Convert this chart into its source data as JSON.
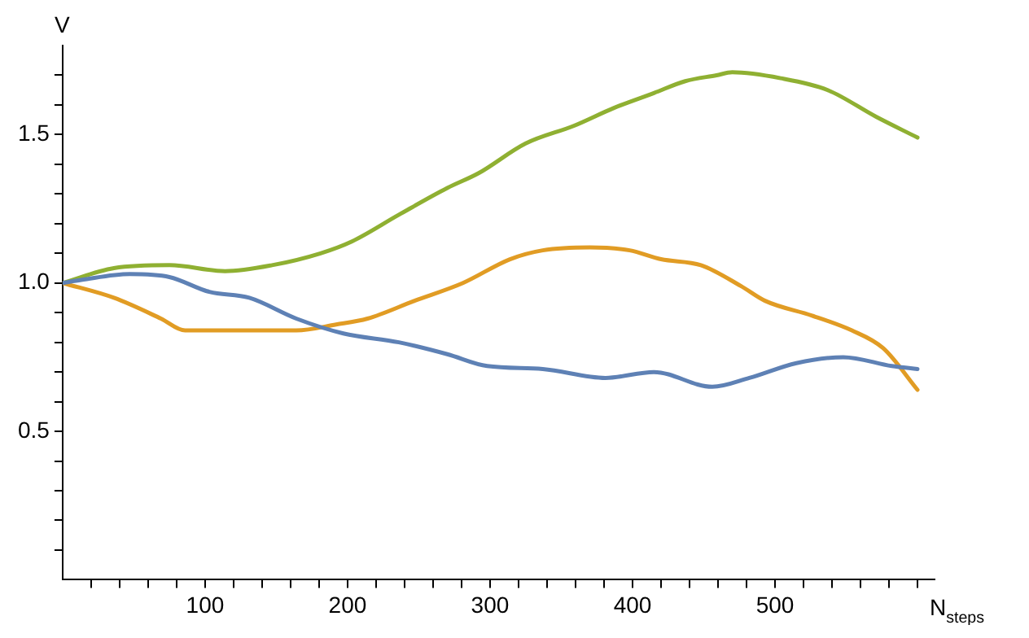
{
  "chart_data": {
    "type": "line",
    "xlabel": "N$_{steps}$",
    "ylabel": "V",
    "xlim": [
      0,
      612
    ],
    "ylim": [
      0,
      1.8
    ],
    "xticks": [
      {
        "value": 20,
        "label": null
      },
      {
        "value": 40,
        "label": null
      },
      {
        "value": 60,
        "label": null
      },
      {
        "value": 80,
        "label": null
      },
      100,
      {
        "value": 120,
        "label": null
      },
      {
        "value": 140,
        "label": null
      },
      {
        "value": 160,
        "label": null
      },
      {
        "value": 180,
        "label": null
      },
      200,
      {
        "value": 220,
        "label": null
      },
      {
        "value": 240,
        "label": null
      },
      {
        "value": 260,
        "label": null
      },
      {
        "value": 280,
        "label": null
      },
      300,
      {
        "value": 320,
        "label": null
      },
      {
        "value": 340,
        "label": null
      },
      {
        "value": 360,
        "label": null
      },
      {
        "value": 380,
        "label": null
      },
      400,
      {
        "value": 420,
        "label": null
      },
      {
        "value": 440,
        "label": null
      },
      {
        "value": 460,
        "label": null
      },
      {
        "value": 480,
        "label": null
      },
      500,
      {
        "value": 520,
        "label": null
      },
      {
        "value": 540,
        "label": null
      },
      {
        "value": 560,
        "label": null
      },
      {
        "value": 580,
        "label": null
      },
      {
        "value": 600,
        "label": null
      }
    ],
    "yticks": [
      {
        "value": 0.1,
        "label": null
      },
      {
        "value": 0.2,
        "label": null
      },
      {
        "value": 0.3,
        "label": null
      },
      {
        "value": 0.4,
        "label": null
      },
      0.5,
      {
        "value": 0.6,
        "label": null
      },
      {
        "value": 0.7,
        "label": null
      },
      {
        "value": 0.8,
        "label": null
      },
      {
        "value": 0.9,
        "label": null
      },
      {
        "value": 1,
        "label": "1.0"
      },
      {
        "value": 1.1,
        "label": null
      },
      {
        "value": 1.2,
        "label": null
      },
      {
        "value": 1.3,
        "label": null
      },
      {
        "value": 1.4,
        "label": null
      },
      1.5,
      {
        "value": 1.6,
        "label": null
      },
      {
        "value": 1.7,
        "label": null
      }
    ],
    "grid": false,
    "legend": false,
    "marker": "none",
    "line_style": "solid",
    "series": [
      {
        "color": "#5e81b5",
        "x": [
          0,
          13,
          47,
          75,
          103,
          131,
          164,
          197,
          236,
          270,
          298,
          337,
          381,
          415,
          456,
          482,
          515,
          548,
          582,
          600
        ],
        "values": [
          1,
          1.01,
          1.03,
          1.02,
          0.97,
          0.95,
          0.88,
          0.83,
          0.8,
          0.76,
          0.72,
          0.71,
          0.68,
          0.7,
          0.65,
          0.68,
          0.73,
          0.75,
          0.72,
          0.71
        ]
      },
      {
        "color": "#e19c24",
        "x": [
          0,
          36,
          69,
          86,
          114,
          136,
          164,
          192,
          214,
          247,
          281,
          314,
          337,
          370,
          398,
          420,
          448,
          476,
          493,
          526,
          554,
          576,
          600
        ],
        "values": [
          1,
          0.95,
          0.88,
          0.84,
          0.84,
          0.84,
          0.84,
          0.86,
          0.88,
          0.94,
          1.0,
          1.08,
          1.11,
          1.12,
          1.11,
          1.08,
          1.06,
          0.99,
          0.94,
          0.89,
          0.84,
          0.78,
          0.64
        ]
      },
      {
        "color": "#8fb032",
        "x": [
          0,
          36,
          75,
          114,
          147,
          181,
          203,
          236,
          270,
          292,
          325,
          359,
          387,
          415,
          437,
          459,
          470,
          504,
          537,
          571,
          600
        ],
        "values": [
          1,
          1.05,
          1.06,
          1.04,
          1.06,
          1.1,
          1.14,
          1.23,
          1.32,
          1.37,
          1.47,
          1.53,
          1.59,
          1.64,
          1.68,
          1.7,
          1.71,
          1.69,
          1.65,
          1.56,
          1.49
        ]
      }
    ]
  }
}
